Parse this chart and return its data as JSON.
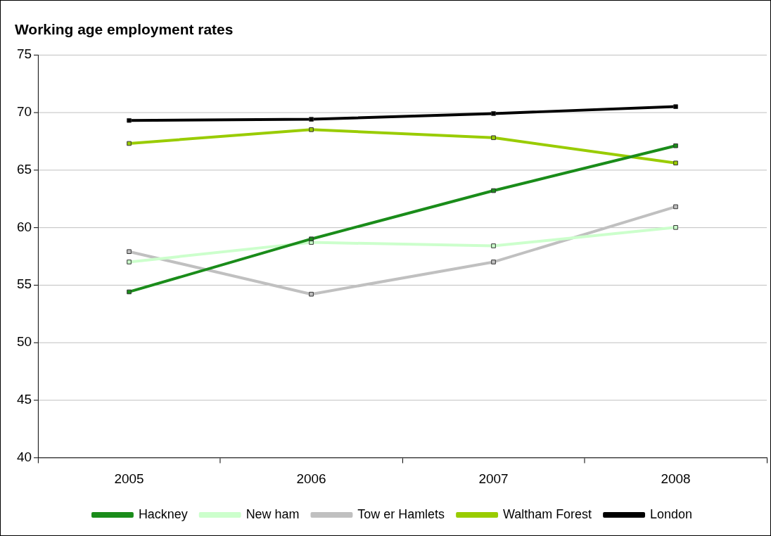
{
  "chart_data": {
    "type": "line",
    "title": "Working age employment rates",
    "categories": [
      "2005",
      "2006",
      "2007",
      "2008"
    ],
    "series": [
      {
        "name": "Hackney",
        "color": "#1a8c1a",
        "values": [
          54.4,
          59.0,
          63.2,
          67.1
        ]
      },
      {
        "name": "New ham",
        "color": "#ccffcc",
        "values": [
          57.0,
          58.7,
          58.4,
          60.0
        ]
      },
      {
        "name": "Tow er Hamlets",
        "color": "#c0c0c0",
        "values": [
          57.9,
          54.2,
          57.0,
          61.8
        ]
      },
      {
        "name": "Waltham Forest",
        "color": "#99cc00",
        "values": [
          67.3,
          68.5,
          67.8,
          65.6
        ]
      },
      {
        "name": "London",
        "color": "#000000",
        "values": [
          69.3,
          69.4,
          69.9,
          70.5
        ]
      }
    ],
    "ylim": [
      40,
      75
    ],
    "yticks": [
      40,
      45,
      50,
      55,
      60,
      65,
      70,
      75
    ],
    "grid": "y",
    "legend": "bottom",
    "marker": "square",
    "line_style": "solid"
  }
}
